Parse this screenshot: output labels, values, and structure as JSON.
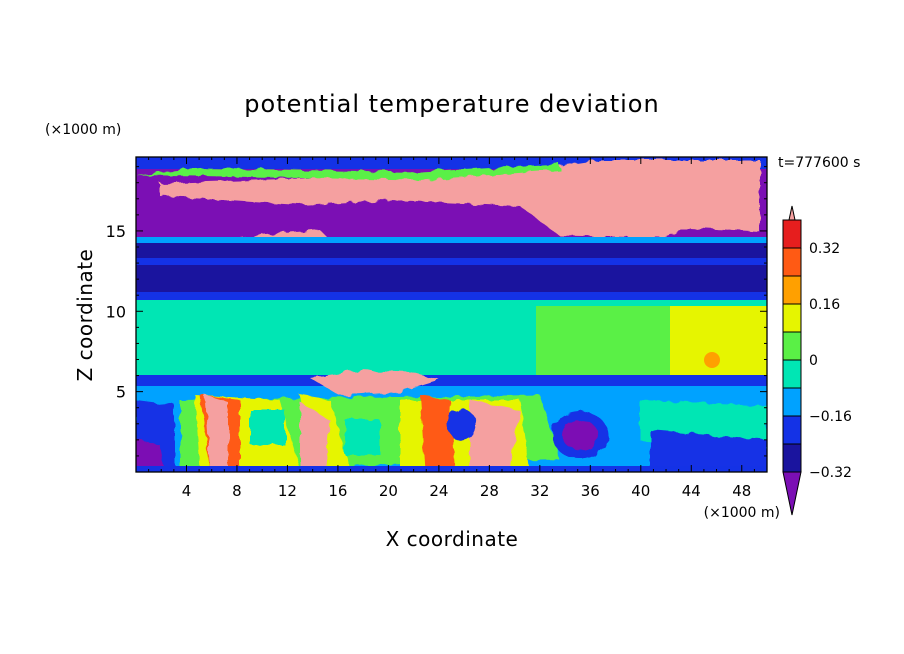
{
  "chart_data": {
    "type": "heatmap",
    "title": "potential temperature deviation",
    "xlabel": "X coordinate",
    "ylabel": "Z coordinate",
    "x_unit": "(×1000 m)",
    "y_unit": "(×1000 m)",
    "time_label": "t=777600 s",
    "xlim": [
      0,
      50
    ],
    "ylim": [
      0,
      19.6
    ],
    "x_ticks": [
      4,
      8,
      12,
      16,
      20,
      24,
      28,
      32,
      36,
      40,
      44,
      48
    ],
    "x_tick_labels": [
      "4",
      "8",
      "12",
      "16",
      "20",
      "24",
      "28",
      "32",
      "36",
      "40",
      "44",
      "48"
    ],
    "y_ticks": [
      5,
      10,
      15
    ],
    "y_tick_labels": [
      "5",
      "10",
      "15"
    ],
    "colorbar": {
      "levels": [
        -0.4,
        -0.32,
        -0.24,
        -0.16,
        -0.08,
        0,
        0.08,
        0.16,
        0.24,
        0.32,
        0.4
      ],
      "tick_values": [
        0.32,
        0.16,
        0,
        -0.16,
        -0.32
      ],
      "tick_labels": [
        "0.32",
        "0.16",
        "0",
        "−0.16",
        "−0.32"
      ],
      "colors": [
        "#7b0fb4",
        "#1a149e",
        "#1432e6",
        "#00a2ff",
        "#00e6b4",
        "#5af046",
        "#e6f500",
        "#ffa000",
        "#ff5a14",
        "#e61e1e",
        "#f5a0a0"
      ],
      "extend": "both"
    },
    "bands": [
      {
        "z_range": [
          0,
          5.5
        ],
        "description_value": "mixed"
      },
      {
        "z_range": [
          5.5,
          6.0
        ],
        "value": -0.36
      },
      {
        "z_range": [
          6.0,
          10.5
        ],
        "value": 0.04
      },
      {
        "z_range": [
          10.5,
          14.5
        ],
        "value": -0.36
      },
      {
        "z_range": [
          14.5,
          19.6
        ],
        "value": -0.44
      }
    ]
  }
}
